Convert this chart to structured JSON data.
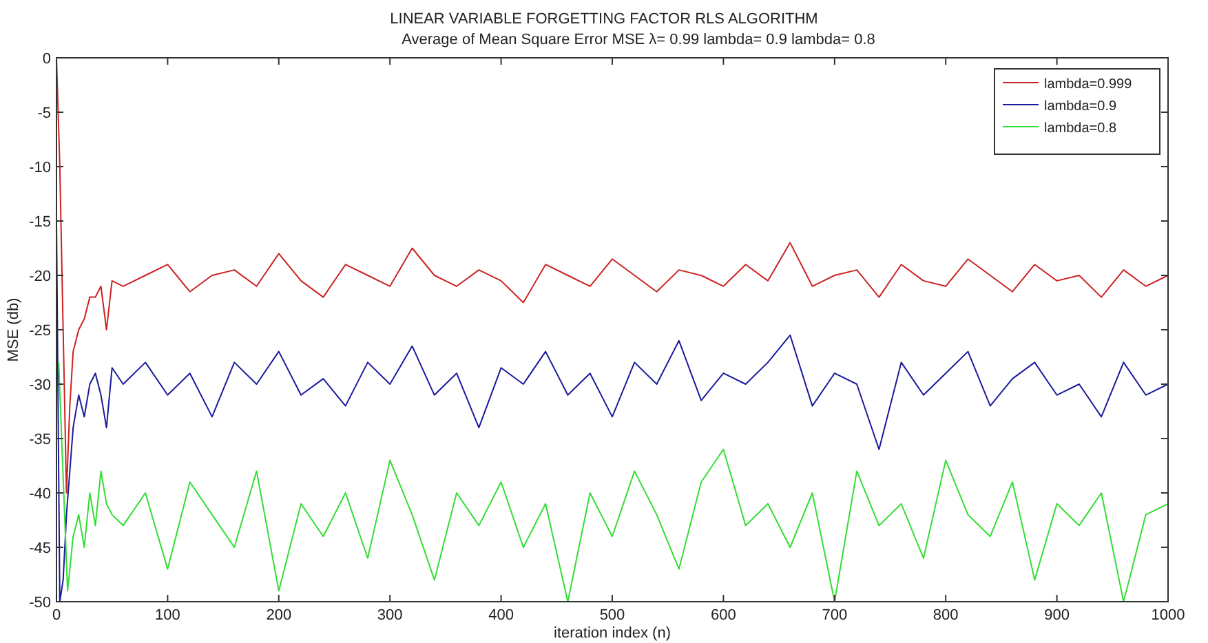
{
  "chart_data": {
    "type": "line",
    "title": "LINEAR VARIABLE FORGETTING FACTOR RLS ALGORITHM",
    "subtitle": "Average of Mean Square Error MSE λ= 0.99 lambda= 0.9 lambda= 0.8",
    "xlabel": "iteration index (n)",
    "ylabel": "MSE (db)",
    "xlim": [
      0,
      1000
    ],
    "xticks": [
      0,
      100,
      200,
      300,
      400,
      500,
      600,
      700,
      800,
      900,
      1000
    ],
    "ylim": [
      -50,
      0
    ],
    "yticks": [
      -50,
      -45,
      -40,
      -35,
      -30,
      -25,
      -20,
      -15,
      -10,
      -5,
      0
    ],
    "grid": false,
    "legend": "top right",
    "marker": "none",
    "line_style": "solid",
    "series": [
      {
        "name": "lambda=0.999",
        "color": "#cc2222",
        "x": [
          0,
          3,
          6,
          9,
          12,
          15,
          20,
          25,
          30,
          35,
          40,
          45,
          50,
          60,
          80,
          100,
          120,
          140,
          160,
          180,
          200,
          220,
          240,
          260,
          280,
          300,
          320,
          340,
          360,
          380,
          400,
          420,
          440,
          460,
          480,
          500,
          520,
          540,
          560,
          580,
          600,
          620,
          640,
          660,
          680,
          700,
          720,
          740,
          760,
          780,
          800,
          820,
          840,
          860,
          880,
          900,
          920,
          940,
          960,
          980,
          1000
        ],
        "values": [
          0,
          -10,
          -25,
          -40,
          -32,
          -27,
          -25,
          -24,
          -22,
          -22,
          -21,
          -25,
          -20.5,
          -21,
          -20,
          -19,
          -21.5,
          -20,
          -19.5,
          -21,
          -18,
          -20.5,
          -22,
          -19,
          -20,
          -21,
          -17.5,
          -20,
          -21,
          -19.5,
          -20.5,
          -22.5,
          -19,
          -20,
          -21,
          -18.5,
          -20,
          -21.5,
          -19.5,
          -20,
          -21,
          -19,
          -20.5,
          -17,
          -21,
          -20,
          -19.5,
          -22,
          -19,
          -20.5,
          -21,
          -18.5,
          -20,
          -21.5,
          -19,
          -20.5,
          -20,
          -22,
          -19.5,
          -21,
          -20
        ]
      },
      {
        "name": "lambda=0.9",
        "color": "#1a1a9c",
        "x": [
          0,
          3,
          6,
          9,
          12,
          15,
          20,
          25,
          30,
          35,
          40,
          45,
          50,
          60,
          80,
          100,
          120,
          140,
          160,
          180,
          200,
          220,
          240,
          260,
          280,
          300,
          320,
          340,
          360,
          380,
          400,
          420,
          440,
          460,
          480,
          500,
          520,
          540,
          560,
          580,
          600,
          620,
          640,
          660,
          680,
          700,
          720,
          740,
          760,
          780,
          800,
          820,
          840,
          860,
          880,
          900,
          920,
          940,
          960,
          980,
          1000
        ],
        "values": [
          -15,
          -50,
          -48,
          -42,
          -38,
          -34,
          -31,
          -33,
          -30,
          -29,
          -31,
          -34,
          -28.5,
          -30,
          -28,
          -31,
          -29,
          -33,
          -28,
          -30,
          -27,
          -31,
          -29.5,
          -32,
          -28,
          -30,
          -26.5,
          -31,
          -29,
          -34,
          -28.5,
          -30,
          -27,
          -31,
          -29,
          -33,
          -28,
          -30,
          -26,
          -31.5,
          -29,
          -30,
          -28,
          -25.5,
          -32,
          -29,
          -30,
          -36,
          -28,
          -31,
          -29,
          -27,
          -32,
          -29.5,
          -28,
          -31,
          -30,
          -33,
          -28,
          -31,
          -30
        ]
      },
      {
        "name": "lambda=0.8",
        "color": "#33dd33",
        "x": [
          2,
          10,
          15,
          20,
          25,
          30,
          35,
          40,
          45,
          50,
          60,
          80,
          100,
          120,
          140,
          160,
          180,
          200,
          220,
          240,
          260,
          280,
          300,
          320,
          340,
          360,
          380,
          400,
          420,
          440,
          460,
          480,
          500,
          520,
          540,
          560,
          580,
          600,
          620,
          640,
          660,
          680,
          700,
          720,
          740,
          760,
          780,
          800,
          820,
          840,
          860,
          880,
          900,
          920,
          940,
          960,
          980,
          1000
        ],
        "values": [
          -28,
          -49,
          -44,
          -42,
          -45,
          -40,
          -43,
          -38,
          -41,
          -42,
          -43,
          -40,
          -47,
          -39,
          -42,
          -45,
          -38,
          -49,
          -41,
          -44,
          -40,
          -46,
          -37,
          -42,
          -48,
          -40,
          -43,
          -39,
          -45,
          -41,
          -50,
          -40,
          -44,
          -38,
          -42,
          -47,
          -39,
          -36,
          -43,
          -41,
          -45,
          -40,
          -50,
          -38,
          -43,
          -41,
          -46,
          -37,
          -42,
          -44,
          -39,
          -48,
          -41,
          -43,
          -40,
          -50,
          -42,
          -41
        ]
      }
    ]
  }
}
